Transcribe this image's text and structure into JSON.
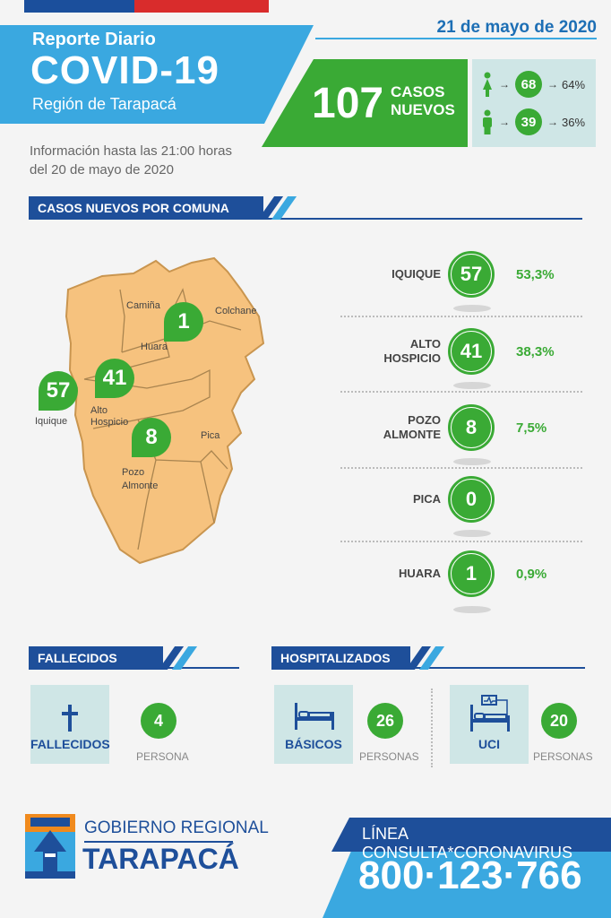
{
  "header": {
    "date": "21 de mayo de 2020",
    "subtitle": "Reporte Diario",
    "title": "COVID-19",
    "region": "Región de Tarapacá",
    "new_cases": "107",
    "new_cases_label_1": "CASOS",
    "new_cases_label_2": "NUEVOS",
    "info_line_1": "Información hasta las 21:00 horas",
    "info_line_2": "del 20 de mayo de 2020"
  },
  "gender": [
    {
      "icon": "female-icon",
      "count": "68",
      "pct": "64%"
    },
    {
      "icon": "male-icon",
      "count": "39",
      "pct": "36%"
    }
  ],
  "colors": {
    "blue": "#3aa8e0",
    "dark_blue": "#1e4f9a",
    "green": "#3aaa35",
    "map": "#f6c27e",
    "card": "#cfe6e6"
  },
  "sections": {
    "comuna": "CASOS NUEVOS POR COMUNA",
    "fallecidos": "FALLECIDOS",
    "hospitalizados": "HOSPITALIZADOS"
  },
  "map": {
    "labels": {
      "camina": "Camiña",
      "colchane": "Colchane",
      "huara": "Huara",
      "iquique": "Iquique",
      "alto_hospicio_1": "Alto",
      "alto_hospicio_2": "Hospicio",
      "pica": "Pica",
      "pozo_1": "Pozo",
      "pozo_2": "Almonte"
    },
    "pins": {
      "huara": "1",
      "iquique": "57",
      "alto_hospicio": "41",
      "pozo_almonte": "8"
    }
  },
  "comunas": [
    {
      "name_1": "IQUIQUE",
      "name_2": "",
      "count": "57",
      "pct": "53,3%"
    },
    {
      "name_1": "ALTO",
      "name_2": "HOSPICIO",
      "count": "41",
      "pct": "38,3%"
    },
    {
      "name_1": "POZO",
      "name_2": "ALMONTE",
      "count": "8",
      "pct": "7,5%"
    },
    {
      "name_1": "PICA",
      "name_2": "",
      "count": "0",
      "pct": ""
    },
    {
      "name_1": "HUARA",
      "name_2": "",
      "count": "1",
      "pct": "0,9%"
    }
  ],
  "fallecidos": {
    "card_label": "FALLECIDOS",
    "count": "4",
    "unit": "PERSONA",
    "icon": "cross-icon"
  },
  "hospitalizados": [
    {
      "card_label": "BÁSICOS",
      "count": "26",
      "unit": "PERSONAS",
      "icon": "hospital-bed-icon"
    },
    {
      "card_label": "UCI",
      "count": "20",
      "unit": "PERSONAS",
      "icon": "icu-bed-icon"
    }
  ],
  "footer": {
    "gob_line_1": "GOBIERNO REGIONAL",
    "gob_line_2": "TARAPACÁ",
    "linea": "LÍNEA CONSULTA*CORONAVIRUS",
    "phone": "800·123·766"
  }
}
